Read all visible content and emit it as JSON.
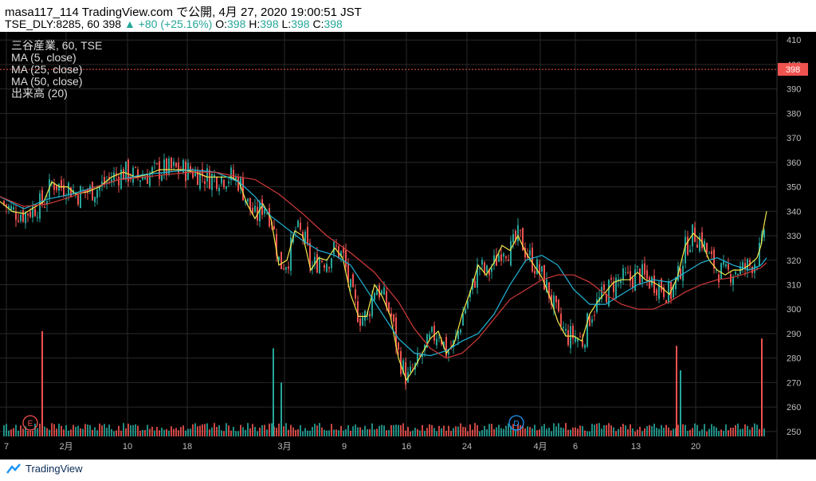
{
  "header": {
    "line1": "masa117_114 TradingView.com で公開, 4月 27, 2020 19:00:51 JST",
    "symbol": "TSE_DLY:8285, 60",
    "last": "398",
    "change": "▲ +80 (+25.16%)",
    "o_label": "O:",
    "o_value": "398",
    "h_label": "H:",
    "h_value": "398",
    "l_label": "L:",
    "l_value": "398",
    "c_label": "C:",
    "c_value": "398"
  },
  "legend": {
    "title": "三谷産業, 60, TSE",
    "ma5": "MA (5, close)",
    "ma25": "MA (25, close)",
    "ma50": "MA (50, close)",
    "volume": "出来高 (20)"
  },
  "footer": {
    "brand": "TradingView"
  },
  "colors": {
    "up": "#26a69a",
    "down": "#ef5350",
    "ma5": "#f5e94b",
    "ma25": "#20b5d8",
    "ma50": "#d23a3a",
    "grid": "#2a2a2a",
    "price_line": "#ef5350"
  },
  "chart_data": {
    "type": "candlestick",
    "y_axis_ticks": [
      250,
      260,
      270,
      280,
      290,
      300,
      310,
      320,
      330,
      340,
      350,
      360,
      370,
      380,
      390,
      400,
      410
    ],
    "ylim": [
      248,
      413
    ],
    "current_price": "398",
    "x_axis_labels": [
      "7",
      "2月",
      "10",
      "18",
      "3月",
      "9",
      "16",
      "24",
      "4月",
      "6",
      "13",
      "20"
    ],
    "event_markers": [
      {
        "label": "E"
      },
      {
        "label": "D"
      }
    ],
    "series": [
      {
        "name": "MA (5, close)",
        "values": [
          [
            0,
            344
          ],
          [
            15,
            340
          ],
          [
            30,
            339
          ],
          [
            45,
            342
          ],
          [
            55,
            344
          ],
          [
            65,
            352
          ],
          [
            75,
            350
          ],
          [
            85,
            350
          ],
          [
            95,
            347
          ],
          [
            110,
            348
          ],
          [
            125,
            350
          ],
          [
            140,
            354
          ],
          [
            155,
            356
          ],
          [
            170,
            354
          ],
          [
            185,
            355
          ],
          [
            200,
            357
          ],
          [
            215,
            357
          ],
          [
            230,
            357
          ],
          [
            245,
            356
          ],
          [
            260,
            354
          ],
          [
            275,
            354
          ],
          [
            290,
            354
          ],
          [
            300,
            352
          ],
          [
            310,
            343
          ],
          [
            320,
            337
          ],
          [
            330,
            343
          ],
          [
            340,
            337
          ],
          [
            350,
            318
          ],
          [
            360,
            320
          ],
          [
            370,
            332
          ],
          [
            380,
            330
          ],
          [
            390,
            316
          ],
          [
            400,
            321
          ],
          [
            410,
            320
          ],
          [
            420,
            325
          ],
          [
            430,
            321
          ],
          [
            440,
            306
          ],
          [
            450,
            297
          ],
          [
            460,
            297
          ],
          [
            470,
            310
          ],
          [
            480,
            305
          ],
          [
            490,
            297
          ],
          [
            500,
            280
          ],
          [
            510,
            271
          ],
          [
            520,
            276
          ],
          [
            530,
            282
          ],
          [
            540,
            288
          ],
          [
            550,
            291
          ],
          [
            560,
            282
          ],
          [
            570,
            286
          ],
          [
            580,
            298
          ],
          [
            590,
            307
          ],
          [
            600,
            318
          ],
          [
            610,
            314
          ],
          [
            620,
            319
          ],
          [
            630,
            326
          ],
          [
            640,
            324
          ],
          [
            650,
            330
          ],
          [
            660,
            323
          ],
          [
            670,
            318
          ],
          [
            680,
            313
          ],
          [
            690,
            305
          ],
          [
            700,
            295
          ],
          [
            710,
            289
          ],
          [
            720,
            289
          ],
          [
            730,
            287
          ],
          [
            740,
            298
          ],
          [
            750,
            303
          ],
          [
            760,
            307
          ],
          [
            770,
            311
          ],
          [
            780,
            312
          ],
          [
            790,
            312
          ],
          [
            800,
            315
          ],
          [
            810,
            312
          ],
          [
            820,
            311
          ],
          [
            830,
            309
          ],
          [
            840,
            306
          ],
          [
            850,
            313
          ],
          [
            860,
            326
          ],
          [
            870,
            331
          ],
          [
            880,
            328
          ],
          [
            890,
            320
          ],
          [
            900,
            316
          ],
          [
            910,
            314
          ],
          [
            920,
            316
          ],
          [
            930,
            316
          ],
          [
            940,
            318
          ],
          [
            950,
            321
          ],
          [
            955,
            326
          ],
          [
            958,
            333
          ],
          [
            962,
            340
          ]
        ]
      },
      {
        "name": "MA (25, close)",
        "values": [
          [
            0,
            346
          ],
          [
            30,
            341
          ],
          [
            60,
            345
          ],
          [
            90,
            347
          ],
          [
            120,
            350
          ],
          [
            150,
            353
          ],
          [
            180,
            355
          ],
          [
            210,
            356
          ],
          [
            240,
            357
          ],
          [
            270,
            356
          ],
          [
            300,
            352
          ],
          [
            320,
            346
          ],
          [
            340,
            338
          ],
          [
            360,
            333
          ],
          [
            380,
            328
          ],
          [
            400,
            324
          ],
          [
            420,
            322
          ],
          [
            440,
            318
          ],
          [
            460,
            308
          ],
          [
            480,
            298
          ],
          [
            500,
            288
          ],
          [
            520,
            282
          ],
          [
            540,
            281
          ],
          [
            560,
            283
          ],
          [
            580,
            287
          ],
          [
            600,
            290
          ],
          [
            620,
            298
          ],
          [
            640,
            310
          ],
          [
            660,
            320
          ],
          [
            680,
            322
          ],
          [
            700,
            318
          ],
          [
            720,
            308
          ],
          [
            740,
            302
          ],
          [
            760,
            302
          ],
          [
            780,
            306
          ],
          [
            800,
            310
          ],
          [
            820,
            312
          ],
          [
            840,
            311
          ],
          [
            860,
            315
          ],
          [
            880,
            319
          ],
          [
            900,
            321
          ],
          [
            920,
            318
          ],
          [
            940,
            316
          ],
          [
            955,
            318
          ],
          [
            962,
            321
          ]
        ]
      },
      {
        "name": "MA (50, close)",
        "values": [
          [
            0,
            346
          ],
          [
            30,
            342
          ],
          [
            60,
            343
          ],
          [
            90,
            346
          ],
          [
            120,
            350
          ],
          [
            150,
            353
          ],
          [
            180,
            354
          ],
          [
            210,
            355
          ],
          [
            240,
            356
          ],
          [
            270,
            356
          ],
          [
            300,
            354
          ],
          [
            320,
            353
          ],
          [
            350,
            347
          ],
          [
            380,
            339
          ],
          [
            410,
            330
          ],
          [
            440,
            323
          ],
          [
            470,
            315
          ],
          [
            500,
            303
          ],
          [
            520,
            292
          ],
          [
            540,
            284
          ],
          [
            560,
            280
          ],
          [
            580,
            282
          ],
          [
            600,
            288
          ],
          [
            620,
            296
          ],
          [
            640,
            304
          ],
          [
            660,
            308
          ],
          [
            680,
            312
          ],
          [
            700,
            314
          ],
          [
            720,
            314
          ],
          [
            740,
            311
          ],
          [
            760,
            306
          ],
          [
            780,
            302
          ],
          [
            800,
            300
          ],
          [
            820,
            300
          ],
          [
            840,
            303
          ],
          [
            860,
            307
          ],
          [
            880,
            310
          ],
          [
            900,
            312
          ],
          [
            920,
            313
          ],
          [
            940,
            315
          ],
          [
            955,
            317
          ],
          [
            962,
            319
          ]
        ]
      }
    ],
    "volume_spikes": [
      {
        "x": 52,
        "value": 291,
        "direction": "down"
      },
      {
        "x": 342,
        "value": 284,
        "direction": "up"
      },
      {
        "x": 352,
        "value": 270,
        "direction": "up"
      },
      {
        "x": 848,
        "value": 285,
        "direction": "down"
      },
      {
        "x": 853,
        "value": 275,
        "direction": "up"
      },
      {
        "x": 955,
        "value": 288,
        "direction": "down"
      }
    ]
  }
}
